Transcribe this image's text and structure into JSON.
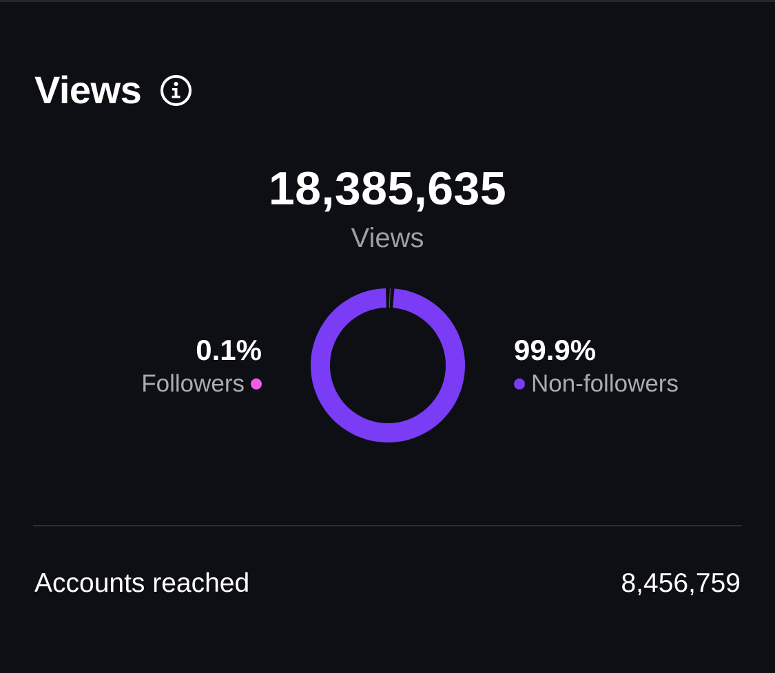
{
  "header": {
    "title": "Views",
    "info_icon": "info-icon"
  },
  "summary": {
    "total_views": "18,385,635",
    "total_label": "Views"
  },
  "breakdown": {
    "followers": {
      "percent": "0.1%",
      "label": "Followers",
      "color": "#f25ce8"
    },
    "non_followers": {
      "percent": "99.9%",
      "label": "Non-followers",
      "color": "#7b3cf5"
    }
  },
  "chart_data": {
    "type": "pie",
    "categories": [
      "Followers",
      "Non-followers"
    ],
    "values": [
      0.1,
      99.9
    ],
    "colors": [
      "#f25ce8",
      "#7b3cf5"
    ],
    "title": "",
    "legend": "sides"
  },
  "accounts": {
    "label": "Accounts reached",
    "value": "8,456,759"
  },
  "theme": {
    "background": "#0d0f14",
    "muted_text": "#9aa0aa"
  }
}
